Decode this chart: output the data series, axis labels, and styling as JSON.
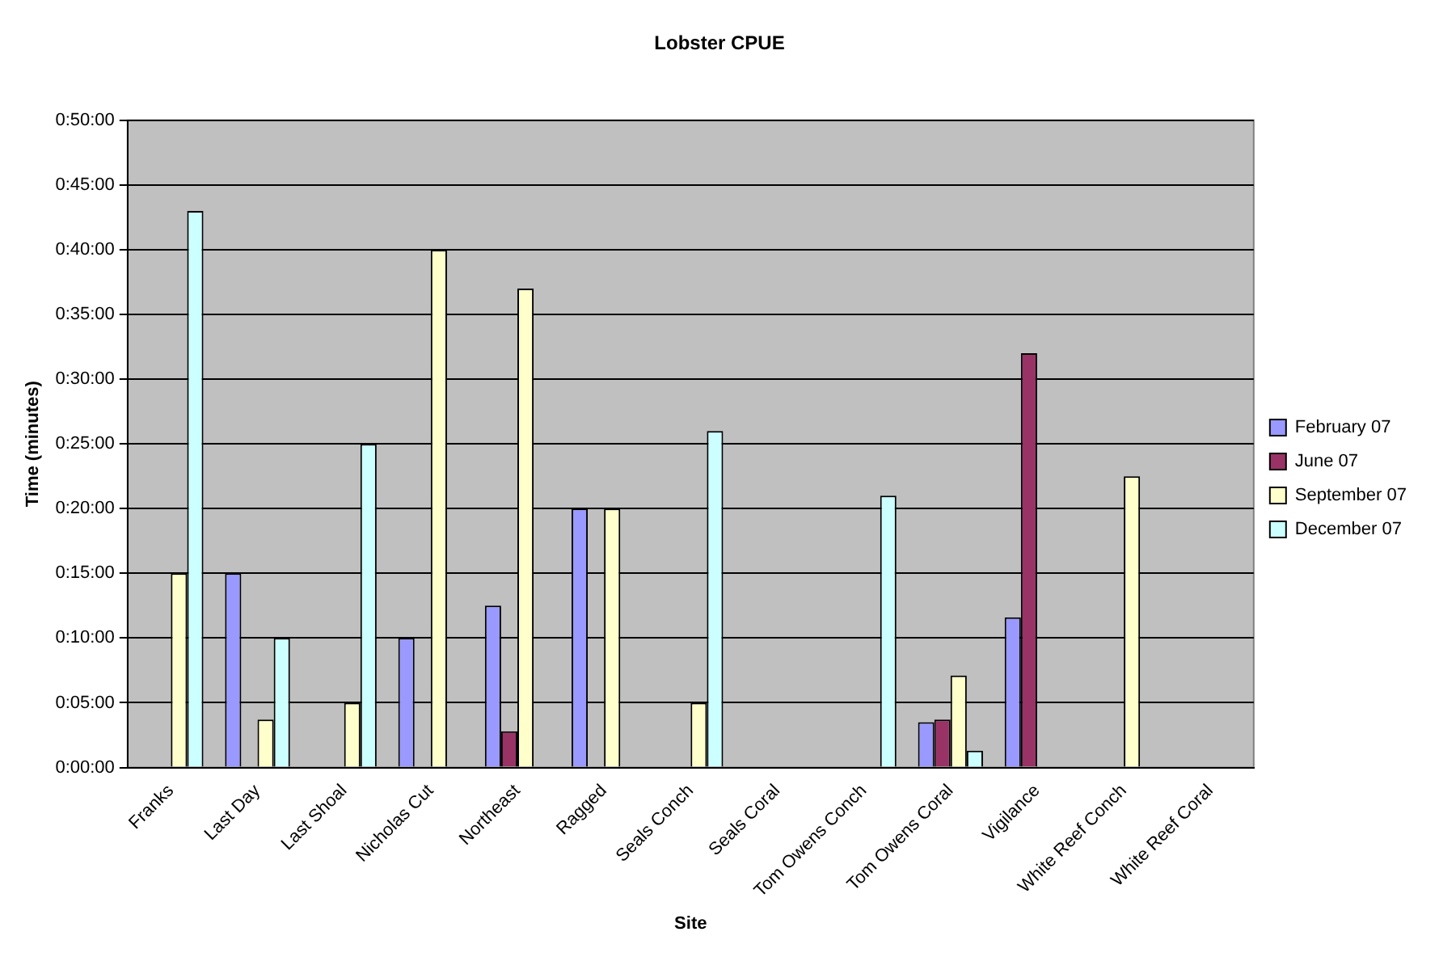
{
  "chart_data": {
    "type": "bar",
    "title": "Lobster CPUE",
    "xlabel": "Site",
    "ylabel": "Time (minutes)",
    "categories": [
      "Franks",
      "Last Day",
      "Last Shoal",
      "Nicholas Cut",
      "Northeast",
      "Ragged",
      "Seals Conch",
      "Seals Coral",
      "Tom Owens Conch",
      "Tom Owens Coral",
      "Vigilance",
      "White Reef Conch",
      "White Reef Coral"
    ],
    "series": [
      {
        "name": "February 07",
        "color": "#9999ff",
        "values": [
          null,
          15,
          null,
          10,
          12.5,
          20,
          null,
          null,
          null,
          3.5,
          11.6,
          null,
          null
        ]
      },
      {
        "name": "June 07",
        "color": "#993366",
        "values": [
          null,
          null,
          null,
          null,
          2.8,
          null,
          null,
          null,
          null,
          3.7,
          32,
          null,
          null
        ]
      },
      {
        "name": "September 07",
        "color": "#ffffcc",
        "values": [
          15,
          3.7,
          5,
          40,
          37,
          20,
          5,
          null,
          null,
          7.1,
          null,
          22.5,
          null
        ]
      },
      {
        "name": "December 07",
        "color": "#ccffff",
        "values": [
          43,
          10,
          25,
          null,
          null,
          null,
          26,
          null,
          21,
          1.3,
          null,
          null,
          null
        ]
      }
    ],
    "ylim": [
      0,
      50
    ],
    "yticks": [
      {
        "value": 0,
        "label": "0:00:00"
      },
      {
        "value": 5,
        "label": "0:05:00"
      },
      {
        "value": 10,
        "label": "0:10:00"
      },
      {
        "value": 15,
        "label": "0:15:00"
      },
      {
        "value": 20,
        "label": "0:20:00"
      },
      {
        "value": 25,
        "label": "0:25:00"
      },
      {
        "value": 30,
        "label": "0:30:00"
      },
      {
        "value": 35,
        "label": "0:35:00"
      },
      {
        "value": 40,
        "label": "0:40:00"
      },
      {
        "value": 45,
        "label": "0:45:00"
      },
      {
        "value": 50,
        "label": "0:50:00"
      }
    ],
    "grid": "y",
    "legend": "right"
  }
}
